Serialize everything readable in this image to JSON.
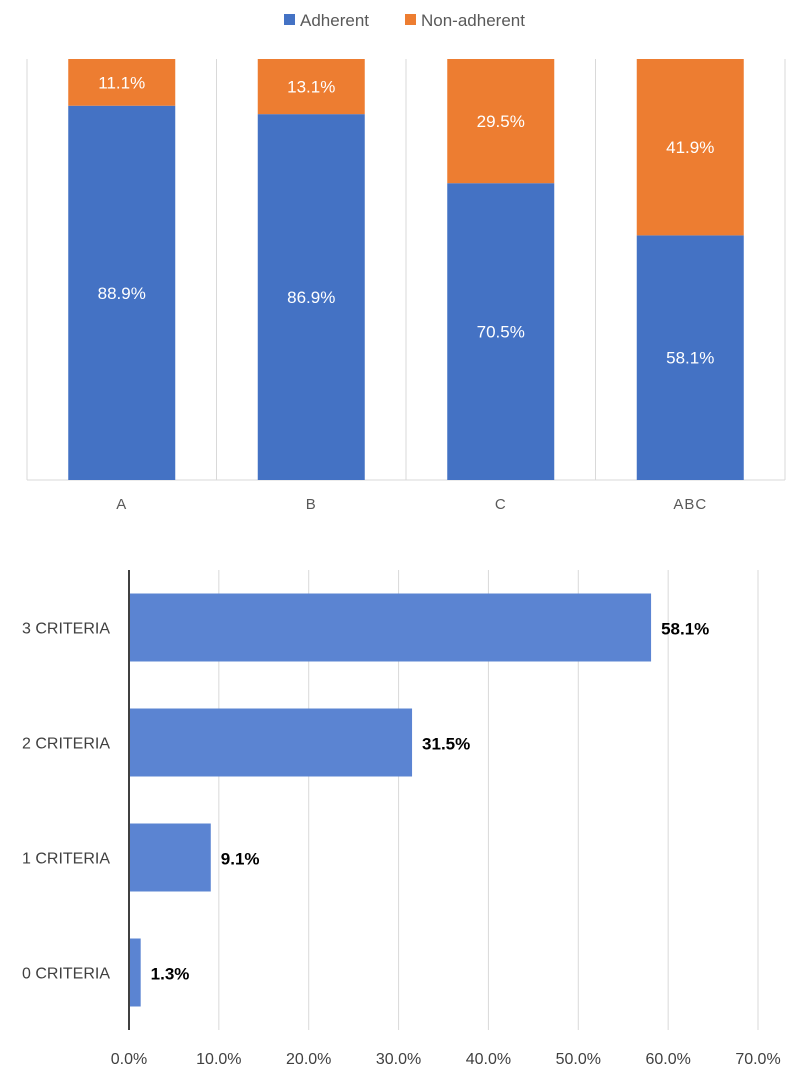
{
  "chart_data": [
    {
      "type": "bar",
      "stacked": true,
      "orientation": "vertical",
      "title": "",
      "categories": [
        "A",
        "B",
        "C",
        "ABC"
      ],
      "series": [
        {
          "name": "Adherent",
          "values": [
            88.9,
            86.9,
            70.5,
            58.1
          ],
          "labels": [
            "88.9%",
            "86.9%",
            "70.5%",
            "58.1%"
          ],
          "color": "#4472C4"
        },
        {
          "name": "Non-adherent",
          "values": [
            11.1,
            13.1,
            29.5,
            41.9
          ],
          "labels": [
            "11.1%",
            "13.1%",
            "29.5%",
            "41.9%"
          ],
          "color": "#ED7D31"
        }
      ],
      "ylim": [
        0,
        100
      ],
      "legend": "top-center",
      "grid": "vertical-separators"
    },
    {
      "type": "bar",
      "orientation": "horizontal",
      "title": "",
      "categories": [
        "3 CRITERIA",
        "2 CRITERIA",
        "1 CRITERIA",
        "0 CRITERIA"
      ],
      "values": [
        58.1,
        31.5,
        9.1,
        1.3
      ],
      "labels": [
        "58.1%",
        "31.5%",
        "9.1%",
        "1.3%"
      ],
      "color": "#5B84D2",
      "xlim": [
        0,
        70
      ],
      "xticks": [
        0,
        10,
        20,
        30,
        40,
        50,
        60,
        70
      ],
      "xtick_labels": [
        "0.0%",
        "10.0%",
        "20.0%",
        "30.0%",
        "40.0%",
        "50.0%",
        "60.0%",
        "70.0%"
      ],
      "grid": "vertical"
    }
  ]
}
